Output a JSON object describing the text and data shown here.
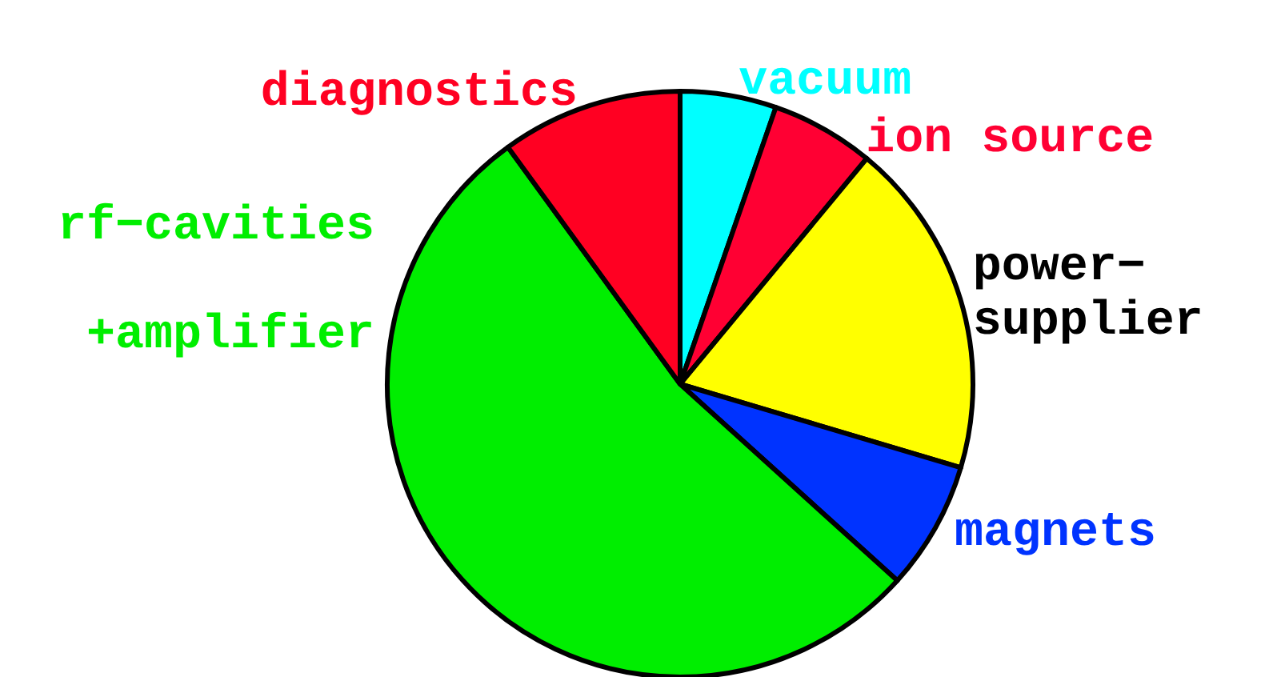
{
  "chart_data": {
    "type": "pie",
    "categories": [
      "vacuum",
      "ion source",
      "power−\nsupplier",
      "magnets",
      "rf−cavities\n\n+amplifier",
      "diagnostics"
    ],
    "values": [
      5.3,
      5.7,
      18.6,
      7.1,
      53.3,
      10
    ],
    "colors": [
      "#00ffff",
      "#ff0033",
      "#ffff00",
      "#0033ff",
      "#00ee00",
      "#ff0022"
    ]
  }
}
